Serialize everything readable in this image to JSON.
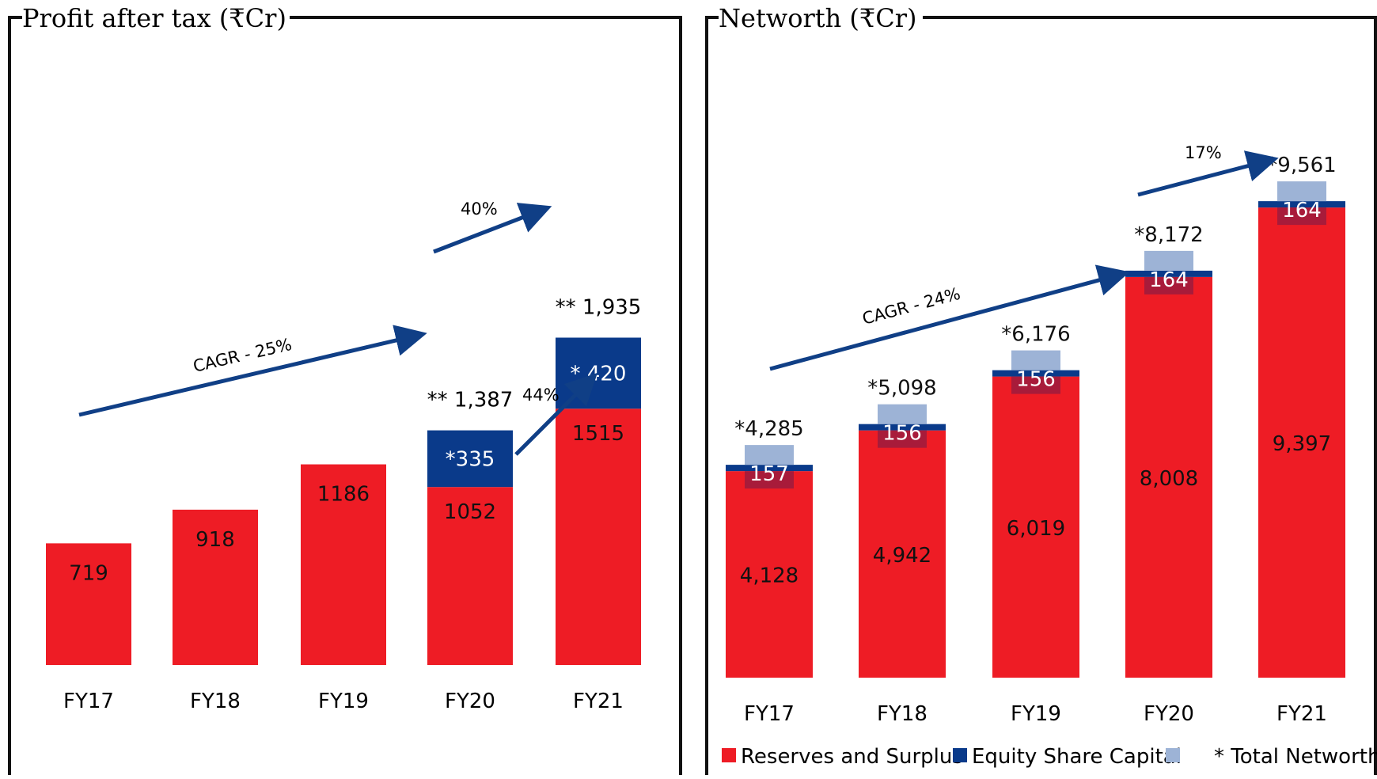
{
  "colors": {
    "red": "#ee1c25",
    "navy": "#0a3a8a",
    "light_blue": "#9db3d6",
    "dark_overlay": "#9b1b3e",
    "arrow": "#103f86"
  },
  "chart_data": [
    {
      "type": "bar",
      "title": "Profit after tax (₹Cr)",
      "categories": [
        "FY17",
        "FY18",
        "FY19",
        "FY20",
        "FY21"
      ],
      "series": [
        {
          "name": "",
          "values": [
            719,
            918,
            1186,
            1052,
            1515
          ],
          "labels": [
            "719",
            "918",
            "1186",
            "1052",
            "1515"
          ]
        },
        {
          "name": "",
          "values": [
            0,
            0,
            0,
            335,
            420
          ],
          "labels": [
            "",
            "",
            "",
            "*335",
            "* 420"
          ]
        }
      ],
      "totals": [
        "",
        "",
        "",
        "** 1,387",
        "** 1,935"
      ],
      "ylim": [
        0,
        2000
      ],
      "annotations": [
        "CAGR - 25%",
        "40%",
        "44%"
      ]
    },
    {
      "type": "bar",
      "title": "Networth (₹Cr)",
      "categories": [
        "FY17",
        "FY18",
        "FY19",
        "FY20",
        "FY21"
      ],
      "series": [
        {
          "name": "Reserves and Surplus",
          "values": [
            4128,
            4942,
            6019,
            8008,
            9397
          ],
          "labels": [
            "4,128",
            "4,942",
            "6,019",
            "8,008",
            "9,397"
          ]
        },
        {
          "name": "Equity Share Capital",
          "values": [
            157,
            156,
            156,
            164,
            164
          ],
          "labels": [
            "157",
            "156",
            "156",
            "164",
            "164"
          ]
        },
        {
          "name": "* Total Networth",
          "values": [
            4285,
            5098,
            6176,
            8172,
            9561
          ],
          "labels": [
            "*4,285",
            "*5,098",
            "*6,176",
            "*8,172",
            "*9,561"
          ]
        }
      ],
      "ylim": [
        0,
        10000
      ],
      "annotations": [
        "CAGR - 24%",
        "17%"
      ],
      "legend": "bottom"
    }
  ]
}
